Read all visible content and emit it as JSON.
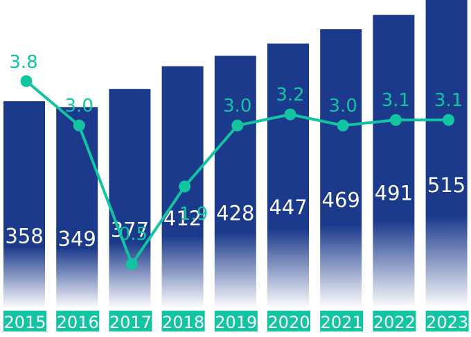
{
  "chart_data": {
    "type": "bar",
    "categories": [
      "2015",
      "2016",
      "2017",
      "2018",
      "2019",
      "2020",
      "2021",
      "2022",
      "2023"
    ],
    "series": [
      {
        "values": [
          358,
          349,
          377,
          412,
          428,
          447,
          469,
          491,
          515
        ],
        "kind": "bar"
      },
      {
        "values": [
          3.8,
          3.0,
          0.5,
          1.9,
          3.0,
          3.2,
          3.0,
          3.1,
          3.1
        ],
        "kind": "line"
      }
    ],
    "colors": {
      "bar": "#1b3a8c",
      "line": "#13c4a3",
      "year_label_bg": "#13c4a3",
      "bar_label": "#ffffff",
      "year_label_text": "#ffffff"
    },
    "xlabel": "",
    "ylabel": "",
    "grid": false,
    "legend": "none"
  }
}
